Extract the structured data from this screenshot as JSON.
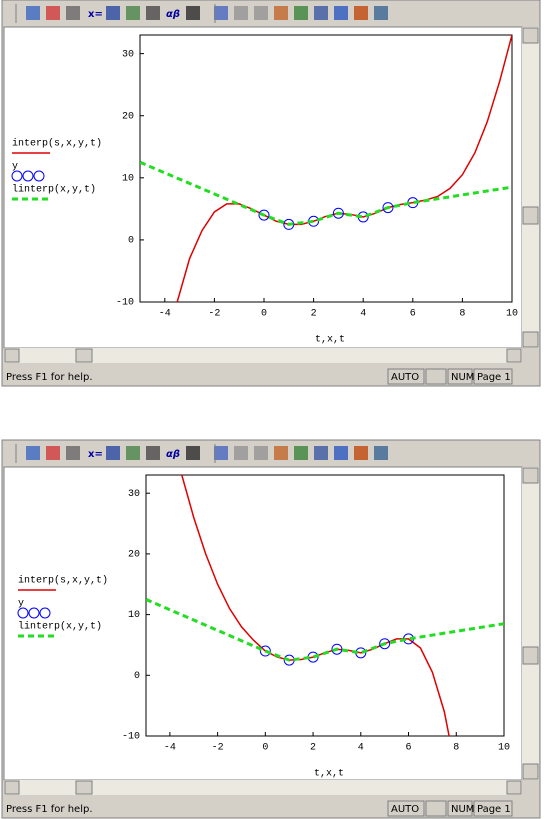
{
  "chart_data": [
    {
      "type": "line",
      "xlabel": "t,x,t",
      "xlim": [
        -5,
        10
      ],
      "ylim": [
        -10,
        33
      ],
      "xticks": [
        -4,
        -2,
        0,
        2,
        4,
        6,
        8,
        10
      ],
      "yticks": [
        -10,
        0,
        10,
        20,
        30
      ],
      "series": [
        {
          "name": "interp(s,x,y,t)",
          "color": "#e00000",
          "style": "solid",
          "x": [
            -3.5,
            -3,
            -2.5,
            -2,
            -1.5,
            -1,
            -0.5,
            0,
            0.5,
            1,
            1.5,
            2,
            2.5,
            3,
            3.5,
            4,
            4.5,
            5,
            5.5,
            6,
            6.5,
            7,
            7.5,
            8,
            8.5,
            9,
            9.5,
            10
          ],
          "values": [
            -10,
            -3,
            1.5,
            4.5,
            5.8,
            5.8,
            5,
            4,
            3,
            2.5,
            2.5,
            3,
            3.8,
            4.3,
            4.1,
            3.7,
            4.3,
            5.2,
            5.7,
            6,
            6.4,
            7,
            8.3,
            10.5,
            14,
            19,
            25.5,
            33
          ]
        },
        {
          "name": "y",
          "color": "#0000ff",
          "style": "circles",
          "x": [
            0,
            1,
            2,
            3,
            4,
            5,
            6
          ],
          "values": [
            4,
            2.5,
            3,
            4.3,
            3.7,
            5.2,
            6
          ]
        },
        {
          "name": "linterp(x,y,t)",
          "color": "#22dd22",
          "style": "dashed",
          "x": [
            -5,
            0,
            1,
            2,
            3,
            4,
            5,
            6,
            10
          ],
          "values": [
            12.5,
            4,
            2.5,
            3,
            4.3,
            3.7,
            5.2,
            6,
            8.5
          ]
        }
      ]
    },
    {
      "type": "line",
      "xlabel": "t,x,t",
      "xlim": [
        -5,
        10
      ],
      "ylim": [
        -10,
        33
      ],
      "xticks": [
        -4,
        -2,
        0,
        2,
        4,
        6,
        8,
        10
      ],
      "yticks": [
        -10,
        0,
        10,
        20,
        30
      ],
      "series": [
        {
          "name": "interp(s,x,y,t)",
          "color": "#e00000",
          "style": "solid",
          "x": [
            -3.5,
            -3,
            -2.5,
            -2,
            -1.5,
            -1,
            -0.5,
            0,
            0.5,
            1,
            1.5,
            2,
            2.5,
            3,
            3.5,
            4,
            4.5,
            5,
            5.5,
            6,
            6.5,
            7,
            7.5,
            7.7
          ],
          "values": [
            33,
            26,
            20,
            15,
            11,
            8,
            5.8,
            4,
            3,
            2.5,
            2.6,
            3,
            3.7,
            4.3,
            4.1,
            3.7,
            4.3,
            5.2,
            6,
            6,
            4.5,
            0.5,
            -6,
            -10
          ]
        },
        {
          "name": "y",
          "color": "#0000ff",
          "style": "circles",
          "x": [
            0,
            1,
            2,
            3,
            4,
            5,
            6
          ],
          "values": [
            4,
            2.5,
            3,
            4.3,
            3.7,
            5.2,
            6
          ]
        },
        {
          "name": "linterp(x,y,t)",
          "color": "#22dd22",
          "style": "dashed",
          "x": [
            -5,
            0,
            1,
            2,
            3,
            4,
            5,
            6,
            10
          ],
          "values": [
            12.5,
            4,
            2.5,
            3,
            4.3,
            3.7,
            5.2,
            6,
            8.5
          ]
        }
      ]
    }
  ],
  "toolbar": {
    "labels": [
      "x=",
      "αβ"
    ]
  },
  "status_bar": {
    "help": "Press F1 for help.",
    "mode": "AUTO",
    "num": "NUM",
    "page": "Page 1"
  }
}
